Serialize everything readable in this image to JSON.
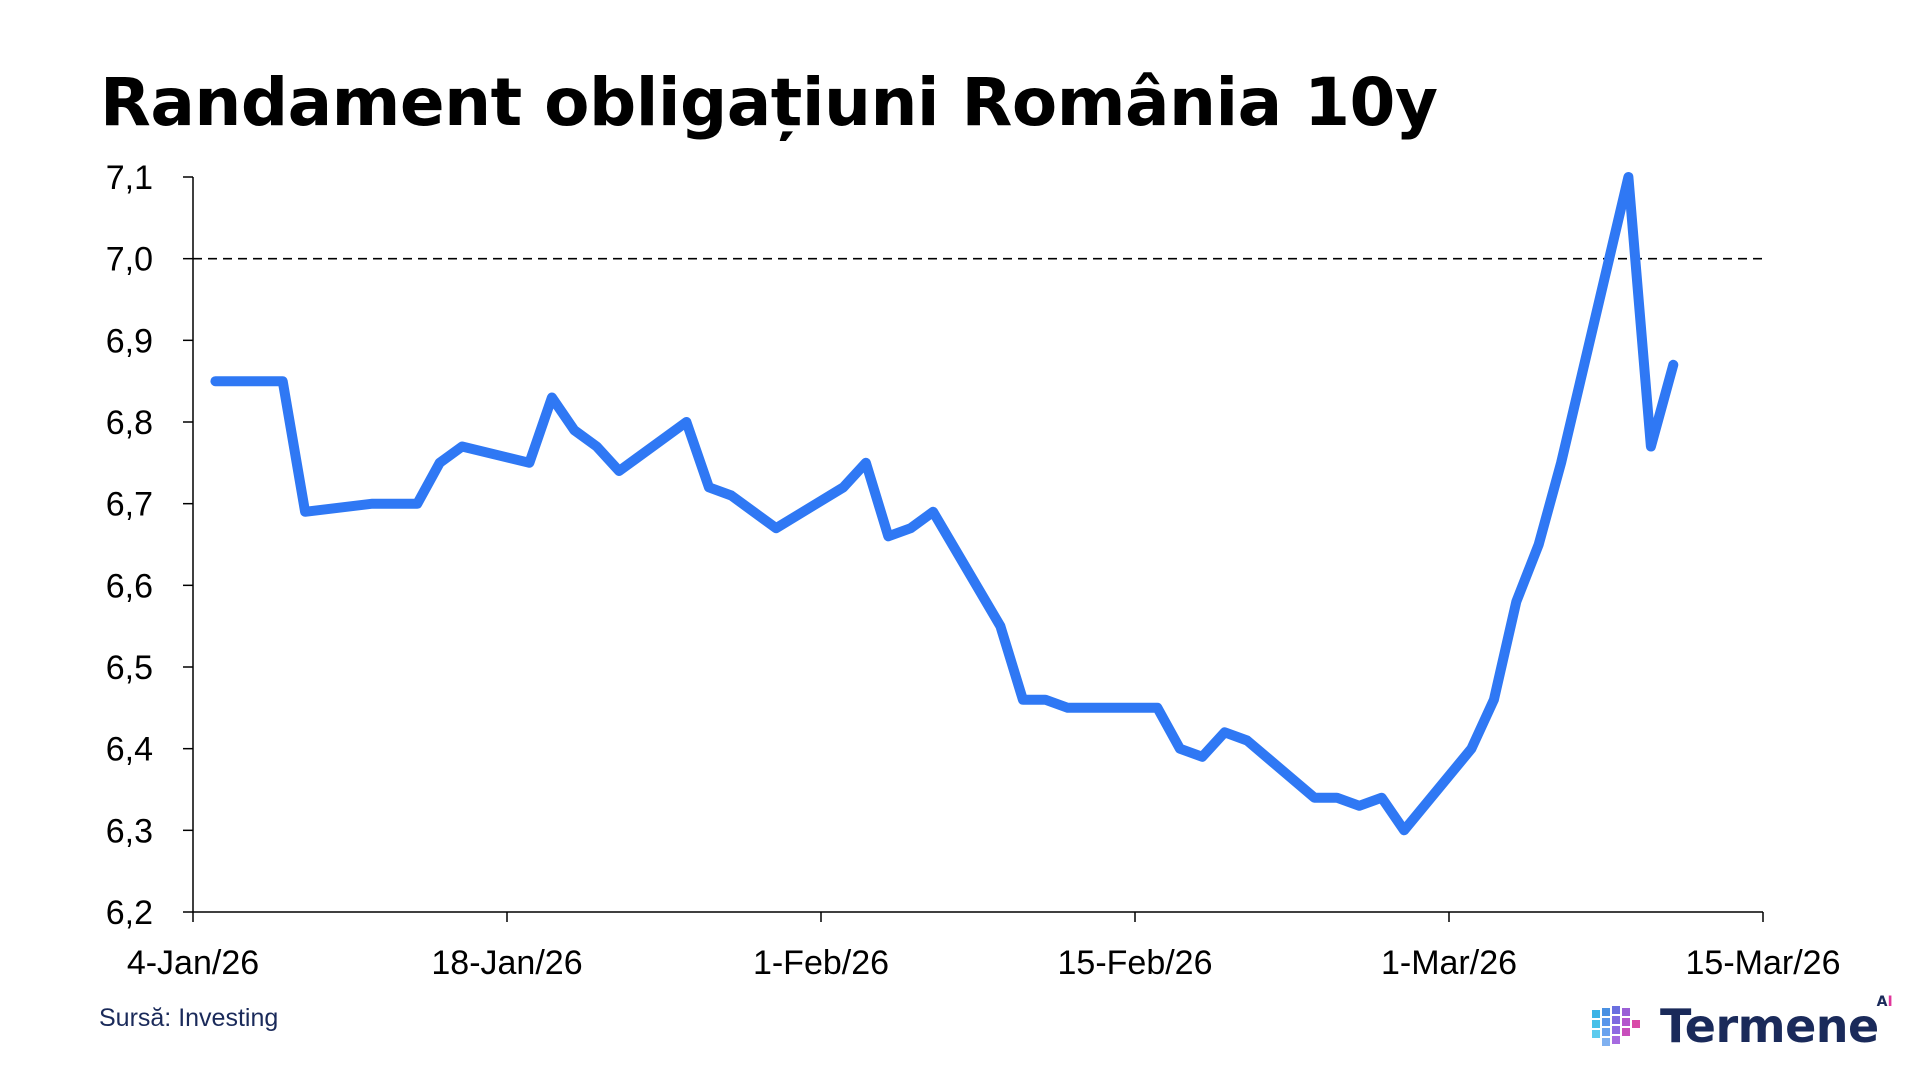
{
  "chart_data": {
    "type": "line",
    "title": "Randament obligațiuni România 10y",
    "xlabel": "",
    "ylabel": "",
    "x_range": [
      "2026-01-04",
      "2026-03-15"
    ],
    "x_ticks": [
      {
        "date": "2026-01-04",
        "label": "4-Jan/26"
      },
      {
        "date": "2026-01-18",
        "label": "18-Jan/26"
      },
      {
        "date": "2026-02-01",
        "label": "1-Feb/26"
      },
      {
        "date": "2026-02-15",
        "label": "15-Feb/26"
      },
      {
        "date": "2026-03-01",
        "label": "1-Mar/26"
      },
      {
        "date": "2026-03-15",
        "label": "15-Mar/26"
      }
    ],
    "ylim": [
      6.2,
      7.1
    ],
    "y_ticks": [
      {
        "value": 6.2,
        "label": "6,2"
      },
      {
        "value": 6.3,
        "label": "6,3"
      },
      {
        "value": 6.4,
        "label": "6,4"
      },
      {
        "value": 6.5,
        "label": "6,5"
      },
      {
        "value": 6.6,
        "label": "6,6"
      },
      {
        "value": 6.7,
        "label": "6,7"
      },
      {
        "value": 6.8,
        "label": "6,8"
      },
      {
        "value": 6.9,
        "label": "6,9"
      },
      {
        "value": 7.0,
        "label": "7,0"
      },
      {
        "value": 7.1,
        "label": "7,1"
      }
    ],
    "reference_line": {
      "value": 7.0,
      "style": "dashed"
    },
    "grid": false,
    "series": [
      {
        "color": "#2f78f4",
        "points": [
          [
            "2026-01-05",
            6.85
          ],
          [
            "2026-01-06",
            6.85
          ],
          [
            "2026-01-07",
            6.85
          ],
          [
            "2026-01-08",
            6.85
          ],
          [
            "2026-01-09",
            6.69
          ],
          [
            "2026-01-12",
            6.7
          ],
          [
            "2026-01-13",
            6.7
          ],
          [
            "2026-01-14",
            6.7
          ],
          [
            "2026-01-15",
            6.75
          ],
          [
            "2026-01-16",
            6.77
          ],
          [
            "2026-01-19",
            6.75
          ],
          [
            "2026-01-20",
            6.83
          ],
          [
            "2026-01-21",
            6.79
          ],
          [
            "2026-01-22",
            6.77
          ],
          [
            "2026-01-23",
            6.74
          ],
          [
            "2026-01-26",
            6.8
          ],
          [
            "2026-01-27",
            6.72
          ],
          [
            "2026-01-28",
            6.71
          ],
          [
            "2026-01-30",
            6.67
          ],
          [
            "2026-02-02",
            6.72
          ],
          [
            "2026-02-03",
            6.75
          ],
          [
            "2026-02-04",
            6.66
          ],
          [
            "2026-02-05",
            6.67
          ],
          [
            "2026-02-06",
            6.69
          ],
          [
            "2026-02-09",
            6.55
          ],
          [
            "2026-02-10",
            6.46
          ],
          [
            "2026-02-11",
            6.46
          ],
          [
            "2026-02-12",
            6.45
          ],
          [
            "2026-02-13",
            6.45
          ],
          [
            "2026-02-16",
            6.45
          ],
          [
            "2026-02-17",
            6.4
          ],
          [
            "2026-02-18",
            6.39
          ],
          [
            "2026-02-19",
            6.42
          ],
          [
            "2026-02-20",
            6.41
          ],
          [
            "2026-02-23",
            6.34
          ],
          [
            "2026-02-24",
            6.34
          ],
          [
            "2026-02-25",
            6.33
          ],
          [
            "2026-02-26",
            6.34
          ],
          [
            "2026-02-27",
            6.3
          ],
          [
            "2026-03-02",
            6.4
          ],
          [
            "2026-03-03",
            6.46
          ],
          [
            "2026-03-04",
            6.58
          ],
          [
            "2026-03-05",
            6.65
          ],
          [
            "2026-03-06",
            6.75
          ],
          [
            "2026-03-09",
            7.1
          ],
          [
            "2026-03-10",
            6.77
          ],
          [
            "2026-03-11",
            6.87
          ]
        ]
      }
    ]
  },
  "source": "Sursă: Investing",
  "brand": {
    "name": "Termene",
    "superscript_prefix": "A",
    "superscript_suffix": "I",
    "primary_color": "#1a2a5a",
    "accent_color": "#e0369b",
    "icon": "cube-grid-icon"
  }
}
